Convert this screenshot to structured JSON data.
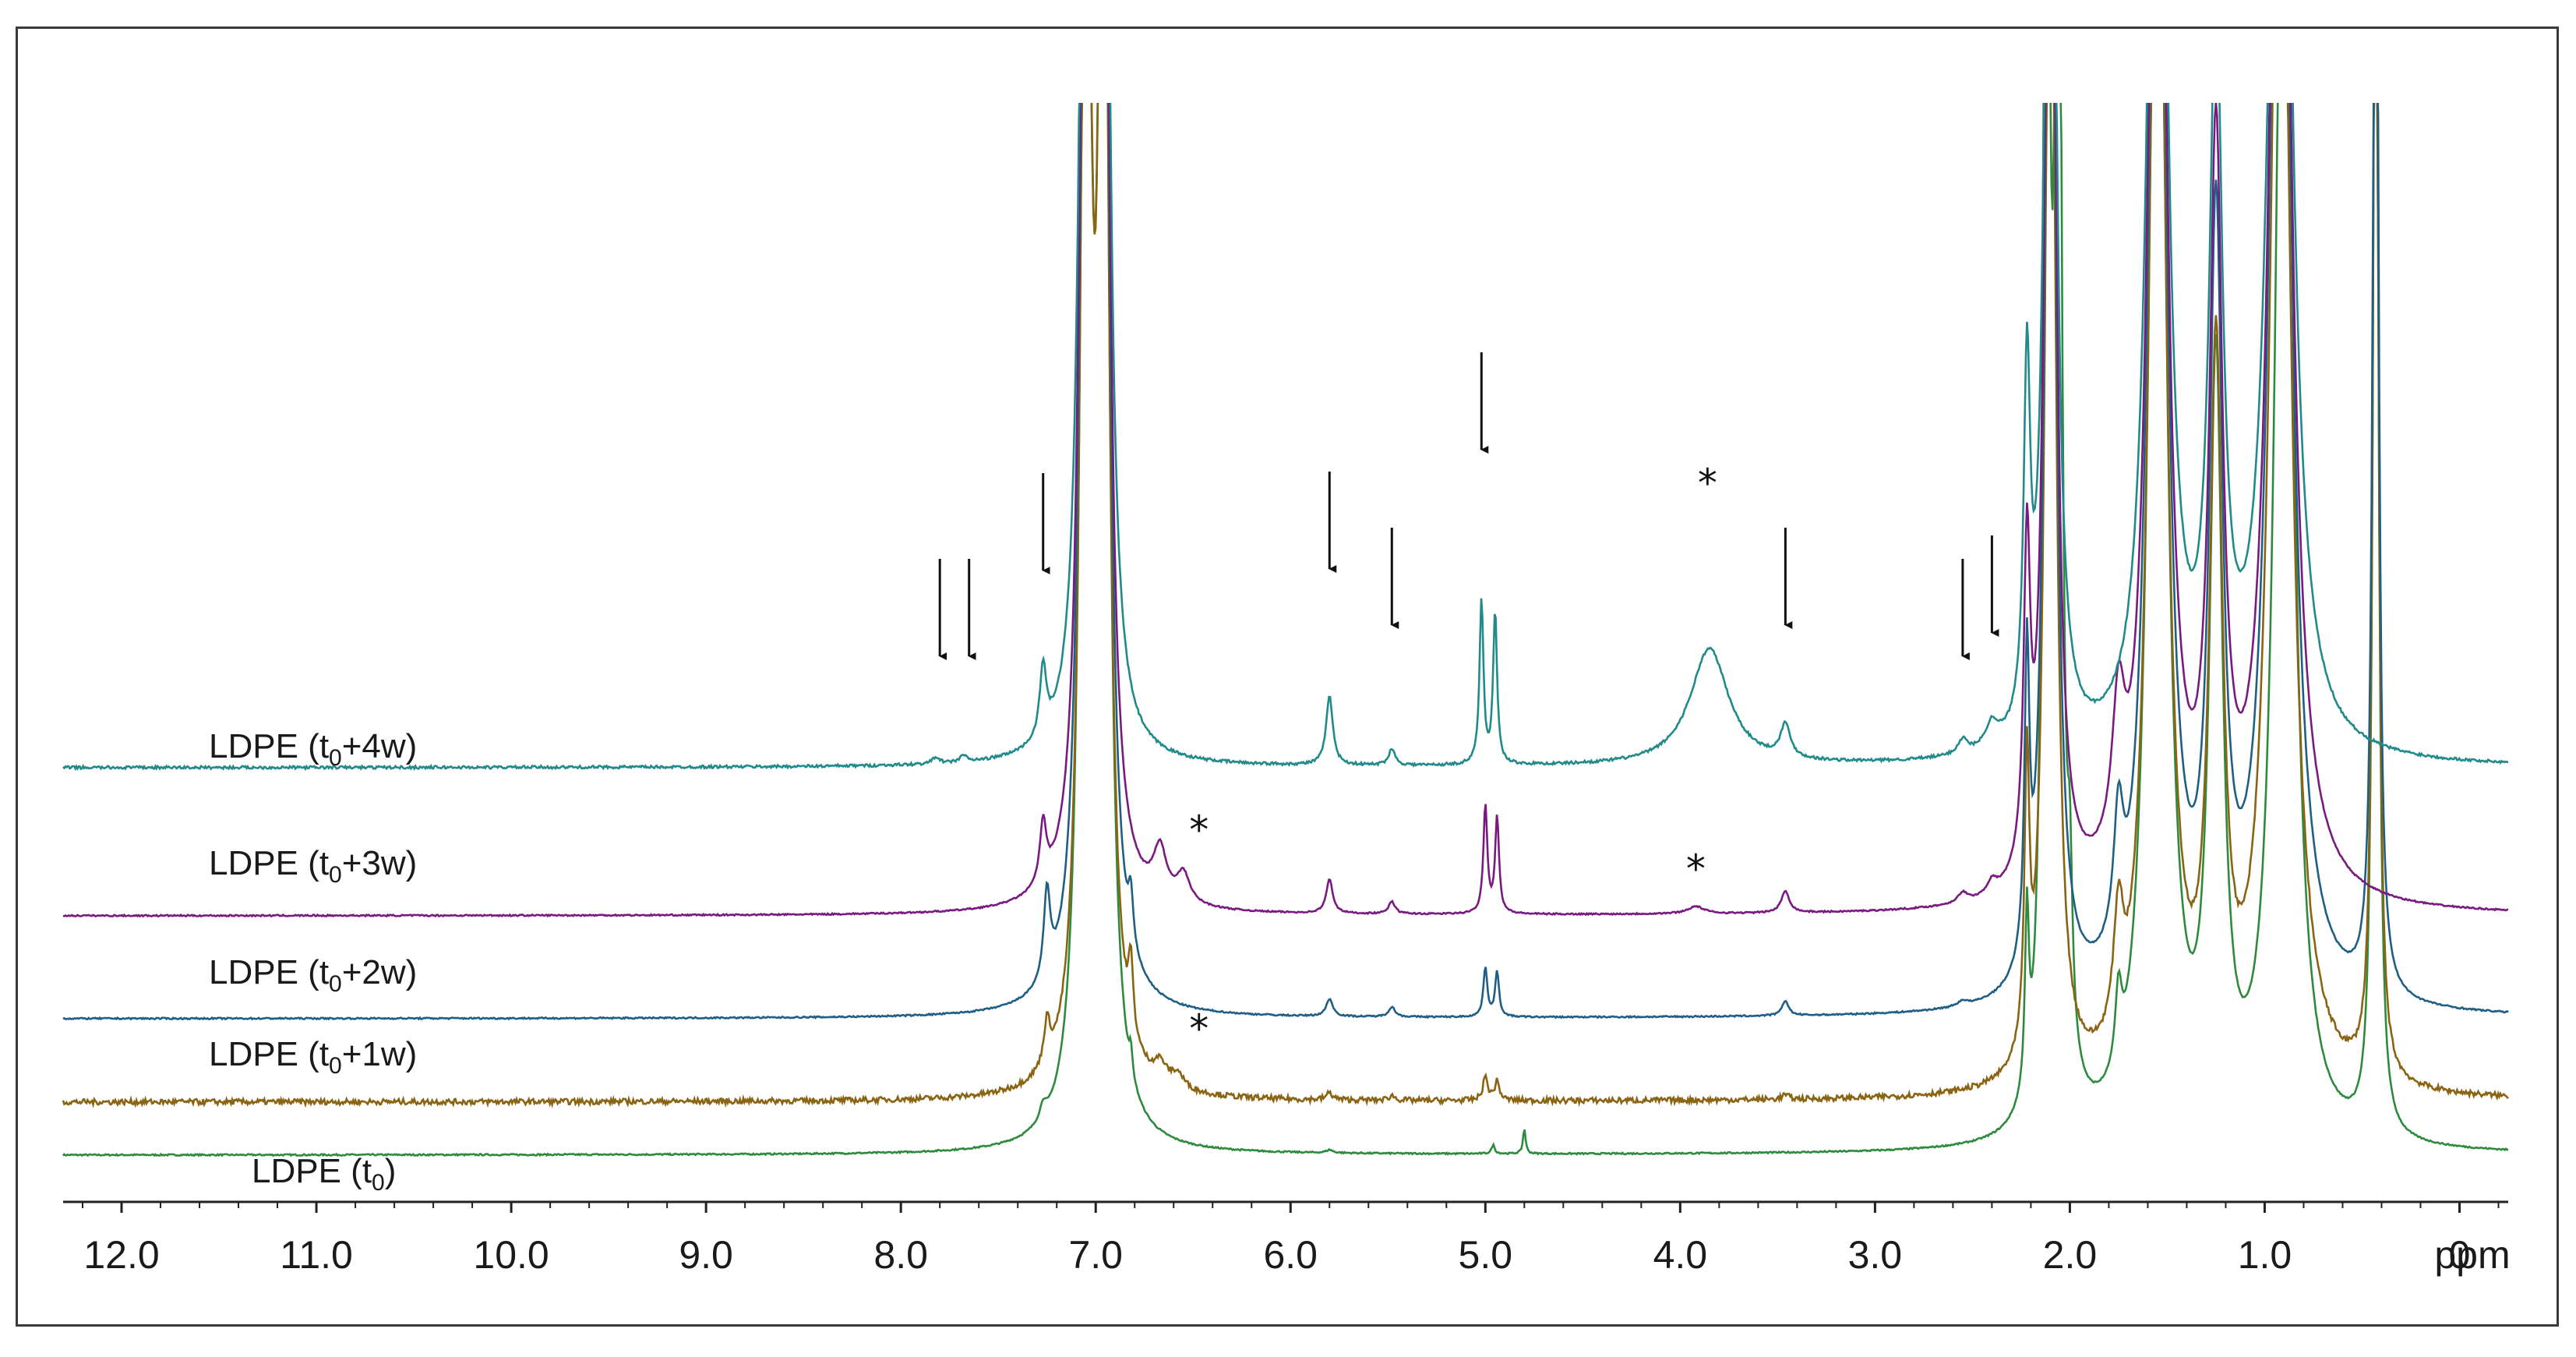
{
  "chart_data": {
    "type": "line",
    "title": "",
    "xlabel": "ppm",
    "xlim": [
      12.3,
      -0.25
    ],
    "x_reversed": true,
    "tick_labels": [
      "12.0",
      "11.0",
      "10.0",
      "9.0",
      "8.0",
      "7.0",
      "6.0",
      "5.0",
      "4.0",
      "3.0",
      "2.0",
      "1.0",
      "0"
    ],
    "tick_values": [
      12,
      11,
      10,
      9,
      8,
      7,
      6,
      5,
      4,
      3,
      2,
      1,
      0
    ],
    "unit_label": "ppm",
    "series": [
      {
        "name": "LDPE (t0)",
        "label_main": "LDPE (t",
        "label_sub": "0",
        "label_tail": ")",
        "color": "#2e8b3e",
        "noise": 0.003,
        "peaks": [
          [
            7.27,
            0.06,
            0.02
          ],
          [
            7.05,
            6.0,
            0.03
          ],
          [
            6.96,
            6.0,
            0.03
          ],
          [
            6.82,
            0.1,
            0.01
          ],
          [
            5.8,
            0.012,
            0.02
          ],
          [
            4.96,
            0.035,
            0.01
          ],
          [
            4.8,
            0.1,
            0.008
          ],
          [
            2.22,
            0.7,
            0.012
          ],
          [
            2.12,
            6,
            0.02
          ],
          [
            2.06,
            6,
            0.02
          ],
          [
            2.0,
            0.6,
            0.015
          ],
          [
            1.75,
            0.3,
            0.02
          ],
          [
            1.55,
            6,
            0.05
          ],
          [
            1.25,
            3,
            0.04
          ],
          [
            0.9,
            6,
            0.05
          ],
          [
            0.43,
            6,
            0.015
          ]
        ]
      },
      {
        "name": "LDPE (t0+1w)",
        "label_main": "LDPE (t",
        "label_sub": "0",
        "label_tail": "+1w)",
        "color": "#8a6412",
        "noise": 0.012,
        "peaks": [
          [
            7.25,
            0.18,
            0.02
          ],
          [
            7.05,
            6,
            0.03
          ],
          [
            6.96,
            6,
            0.03
          ],
          [
            6.82,
            0.3,
            0.015
          ],
          [
            6.67,
            0.08,
            0.04
          ],
          [
            6.58,
            0.06,
            0.04
          ],
          [
            5.8,
            0.03,
            0.02
          ],
          [
            5.48,
            0.02,
            0.02
          ],
          [
            5.0,
            0.1,
            0.015
          ],
          [
            4.94,
            0.08,
            0.015
          ],
          [
            3.46,
            0.02,
            0.02
          ],
          [
            2.22,
            1.2,
            0.015
          ],
          [
            2.1,
            6,
            0.03
          ],
          [
            1.75,
            0.5,
            0.03
          ],
          [
            1.55,
            6,
            0.05
          ],
          [
            1.25,
            3,
            0.04
          ],
          [
            0.92,
            6,
            0.06
          ],
          [
            0.43,
            6,
            0.015
          ]
        ]
      },
      {
        "name": "LDPE (t0+2w)",
        "label_main": "LDPE (t",
        "label_sub": "0",
        "label_tail": "+2w)",
        "color": "#1f5f86",
        "noise": 0.003,
        "peaks": [
          [
            7.25,
            0.35,
            0.02
          ],
          [
            7.05,
            6,
            0.03
          ],
          [
            6.96,
            6,
            0.03
          ],
          [
            6.82,
            0.2,
            0.015
          ],
          [
            5.8,
            0.07,
            0.02
          ],
          [
            5.48,
            0.04,
            0.02
          ],
          [
            5.0,
            0.2,
            0.012
          ],
          [
            4.94,
            0.18,
            0.012
          ],
          [
            3.46,
            0.06,
            0.02
          ],
          [
            2.55,
            0.02,
            0.03
          ],
          [
            2.22,
            1.2,
            0.015
          ],
          [
            2.1,
            6,
            0.03
          ],
          [
            1.75,
            0.5,
            0.03
          ],
          [
            1.55,
            6,
            0.05
          ],
          [
            1.25,
            3,
            0.04
          ],
          [
            0.92,
            6,
            0.06
          ],
          [
            0.43,
            6,
            0.015
          ]
        ]
      },
      {
        "name": "LDPE (t0+3w)",
        "label_main": "LDPE (t",
        "label_sub": "0",
        "label_tail": "+3w)",
        "color": "#7a1a80",
        "noise": 0.003,
        "peaks": [
          [
            7.27,
            0.25,
            0.02
          ],
          [
            7.05,
            6,
            0.03
          ],
          [
            6.96,
            6,
            0.03
          ],
          [
            6.67,
            0.2,
            0.04
          ],
          [
            6.55,
            0.12,
            0.04
          ],
          [
            5.8,
            0.14,
            0.02
          ],
          [
            5.48,
            0.05,
            0.02
          ],
          [
            5.0,
            0.45,
            0.012
          ],
          [
            4.94,
            0.4,
            0.012
          ],
          [
            3.92,
            0.03,
            0.05
          ],
          [
            3.46,
            0.09,
            0.025
          ],
          [
            2.55,
            0.04,
            0.03
          ],
          [
            2.4,
            0.05,
            0.03
          ],
          [
            2.22,
            1.3,
            0.02
          ],
          [
            2.1,
            6,
            0.03
          ],
          [
            1.75,
            0.6,
            0.04
          ],
          [
            1.55,
            6,
            0.05
          ],
          [
            1.25,
            3,
            0.04
          ],
          [
            0.92,
            6,
            0.06
          ]
        ]
      },
      {
        "name": "LDPE (t0+4w)",
        "label_main": "LDPE (t",
        "label_sub": "0",
        "label_tail": "+4w)",
        "color": "#218a8a",
        "noise": 0.006,
        "peaks": [
          [
            7.82,
            0.03,
            0.02
          ],
          [
            7.68,
            0.03,
            0.02
          ],
          [
            7.27,
            0.3,
            0.02
          ],
          [
            7.05,
            6,
            0.03
          ],
          [
            6.96,
            6,
            0.03
          ],
          [
            5.8,
            0.3,
            0.02
          ],
          [
            5.48,
            0.07,
            0.02
          ],
          [
            5.02,
            0.7,
            0.012
          ],
          [
            4.95,
            0.65,
            0.012
          ],
          [
            3.85,
            0.5,
            0.12
          ],
          [
            3.46,
            0.14,
            0.03
          ],
          [
            2.55,
            0.06,
            0.03
          ],
          [
            2.4,
            0.1,
            0.04
          ],
          [
            2.22,
            1.5,
            0.02
          ],
          [
            2.1,
            6,
            0.03
          ],
          [
            1.55,
            6,
            0.05
          ],
          [
            1.25,
            3,
            0.04
          ],
          [
            0.92,
            6,
            0.06
          ]
        ]
      }
    ],
    "arrows_ppm": [
      7.8,
      7.65,
      7.27,
      5.8,
      5.48,
      5.02,
      3.46,
      2.55,
      2.4
    ],
    "asterisks": [
      {
        "ppm": 3.86,
        "text": "*",
        "series": 4
      },
      {
        "ppm": 6.55,
        "text": "*",
        "series": 3
      },
      {
        "ppm": 3.92,
        "text": "*",
        "series": 3
      },
      {
        "ppm": 6.55,
        "text": "*",
        "series": 1
      }
    ]
  }
}
